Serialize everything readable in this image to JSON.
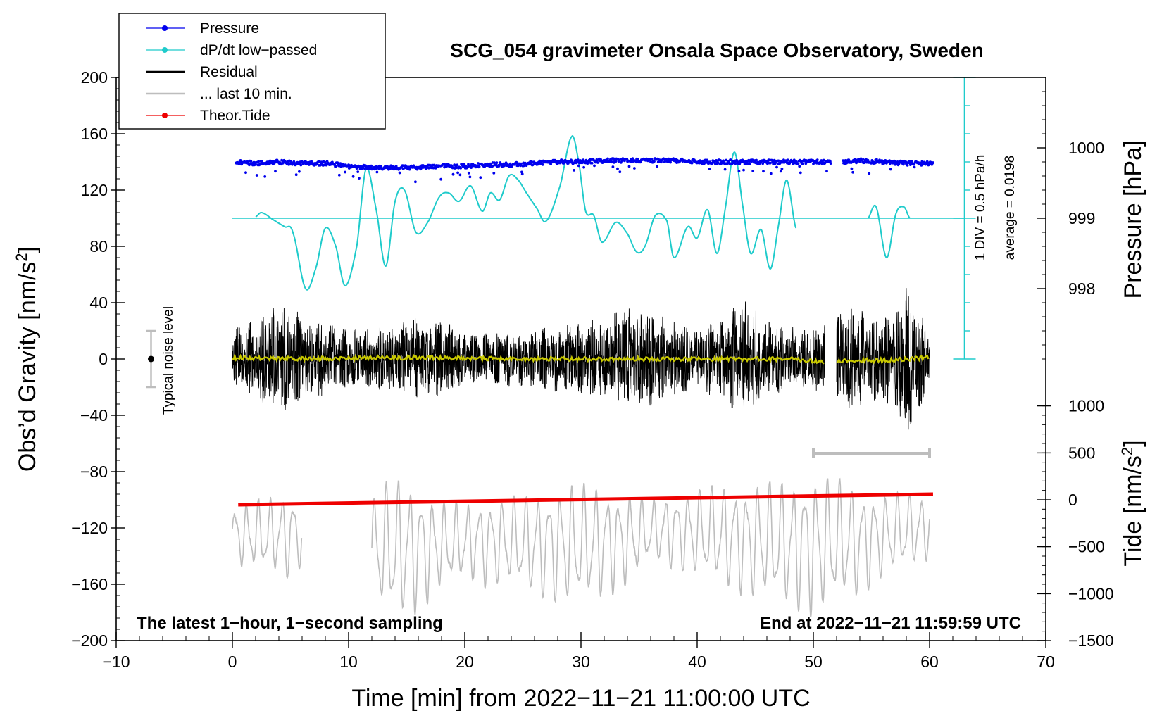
{
  "chart_data": {
    "type": "line",
    "title": "SCG_054 gravimeter Onsala Space Observatory, Sweden",
    "xlabel": "Time [min] from 2022−11−21 11:00:00 UTC",
    "xlim": [
      -10,
      70
    ],
    "xticks": [
      -10,
      0,
      10,
      20,
      30,
      40,
      50,
      60,
      70
    ],
    "xtick_labels": [
      "−10",
      "0",
      "10",
      "20",
      "30",
      "40",
      "50",
      "60",
      "70"
    ],
    "left_axis": {
      "label_main": "Obs’d Gravity [nm/s",
      "label_sup": "2",
      "label_end": "]",
      "ylim": [
        -200,
        200
      ],
      "ticks": [
        200,
        160,
        120,
        80,
        40,
        0,
        -40,
        -80,
        -120,
        -160,
        -200
      ],
      "tick_labels": [
        "200",
        "160",
        "120",
        "80",
        "40",
        "0",
        "−40",
        "−80",
        "−120",
        "−160",
        "−200"
      ]
    },
    "pressure_axis": {
      "label": "Pressure [hPa]",
      "ticks": [
        1000,
        999,
        998
      ],
      "tick_labels": [
        "1000",
        "999",
        "998"
      ],
      "gravity_equivalent": [
        150,
        100,
        50
      ]
    },
    "tide_axis": {
      "label_main": "Tide [nm/s",
      "label_sup": "2",
      "label_end": "]",
      "ticks": [
        1000,
        500,
        0,
        -500,
        -1000,
        -1500
      ],
      "tick_labels": [
        "1000",
        "500",
        "0",
        "−500",
        "−1000",
        "−1500"
      ],
      "gravity_equivalent": [
        -33.3,
        -66.7,
        -100,
        -133.3,
        -166.7,
        -200
      ]
    },
    "dpdt_scale": {
      "line1": "1 DIV = 0.5 hPa/h",
      "line2": "average = 0.0198",
      "zero_level": 100,
      "bar_range": [
        0,
        200
      ],
      "bar_x": 63
    },
    "noise_indicator": {
      "label": "Typical noise level",
      "x": -7,
      "center": 0,
      "range": [
        -20,
        20
      ]
    },
    "last10_bar": {
      "x_range": [
        50,
        60
      ],
      "level": -67
    },
    "legend": [
      {
        "label": "Pressure",
        "color": "#0000ee",
        "marker": true
      },
      {
        "label": "dP/dt low−passed",
        "color": "#1fcbcb",
        "marker": true
      },
      {
        "label": "Residual",
        "color": "#000000",
        "marker": false
      },
      {
        "label": "... last 10 min.",
        "color": "#bdbdbd",
        "marker": false
      },
      {
        "label": "Theor.Tide",
        "color": "#ee0000",
        "marker": true
      }
    ],
    "series": [
      {
        "name": "Pressure",
        "color": "#0000ee",
        "gap": [
          51.5,
          52.5
        ],
        "x": [
          0.3,
          2,
          4,
          6,
          8,
          10,
          12,
          14,
          16,
          18,
          20,
          22,
          24,
          26,
          28,
          30,
          32,
          34,
          36,
          38,
          40,
          42,
          44,
          46,
          48,
          50.3,
          52.6,
          54,
          56,
          58,
          60.3
        ],
        "values": [
          140,
          139,
          140,
          139,
          139,
          137,
          136,
          136,
          136,
          137,
          137,
          138,
          138,
          139,
          140,
          140,
          141,
          141,
          141,
          141,
          140,
          140,
          140,
          140,
          140,
          140,
          140,
          141,
          140,
          139,
          139
        ]
      },
      {
        "name": "dP/dt low−passed",
        "color": "#1fcbcb",
        "gap": [
          48.6,
          54.7
        ],
        "x": [
          2,
          2.5,
          3.5,
          4.5,
          5.2,
          6.3,
          7.2,
          8,
          8.9,
          9.7,
          10.7,
          11.5,
          12.4,
          13.2,
          14,
          14.8,
          15.8,
          16.8,
          17.8,
          18.6,
          19.5,
          20.5,
          21.5,
          22.2,
          23,
          23.8,
          24.5,
          25.3,
          26.2,
          27,
          28.2,
          29.2,
          29.8,
          30.4,
          31.1,
          31.8,
          33,
          34,
          34.8,
          35.5,
          36.4,
          37.4,
          38,
          39.2,
          40,
          40.9,
          41.7,
          42.4,
          43.2,
          43.9,
          44.6,
          45.5,
          46.3,
          47,
          47.7,
          48.5,
          54.7,
          55.4,
          56.3,
          57.1,
          57.8,
          58.3
        ],
        "values": [
          101,
          104,
          99,
          94,
          90,
          50,
          65,
          93,
          80,
          52,
          80,
          135,
          105,
          66,
          112,
          120,
          90,
          97,
          115,
          118,
          112,
          123,
          105,
          118,
          113,
          130,
          128,
          118,
          107,
          98,
          123,
          158,
          140,
          105,
          102,
          83,
          97,
          89,
          76,
          80,
          102,
          98,
          72,
          94,
          86,
          106,
          75,
          106,
          147,
          110,
          75,
          92,
          64,
          95,
          127,
          93,
          100,
          108,
          72,
          103,
          108,
          100
        ]
      },
      {
        "name": "Residual",
        "color": "#000000",
        "gap": [
          51,
          52
        ],
        "x": [
          0,
          2,
          4,
          6,
          8,
          10,
          12,
          14,
          16,
          18,
          20,
          22,
          24,
          26,
          28,
          30,
          32,
          34,
          36,
          38,
          40,
          42,
          44,
          46,
          48,
          50,
          53,
          55,
          57,
          58,
          59,
          60
        ],
        "envelope": [
          22,
          28,
          42,
          32,
          26,
          22,
          22,
          25,
          30,
          28,
          20,
          18,
          20,
          22,
          24,
          26,
          30,
          40,
          34,
          28,
          24,
          28,
          44,
          28,
          24,
          22,
          40,
          30,
          35,
          60,
          38,
          22
        ]
      },
      {
        "name": "Residual smoothed",
        "color": "#c8c800",
        "gap": [
          51,
          52
        ],
        "x": [
          0,
          6,
          12,
          18,
          24,
          30,
          36,
          42,
          48,
          51,
          52,
          56,
          60
        ],
        "values": [
          1,
          0,
          1,
          1,
          0,
          0,
          0,
          0,
          0,
          -2,
          -1,
          -1,
          1
        ]
      },
      {
        "name": "... last 10 min.",
        "color": "#bdbdbd",
        "gap": [
          6,
          12
        ],
        "x": [
          0,
          2,
          4,
          5,
          6,
          12,
          14,
          16,
          18,
          20,
          22,
          24,
          26,
          28,
          30,
          32,
          34,
          36,
          38,
          40,
          42,
          44,
          46,
          48,
          50,
          52,
          54,
          56,
          58,
          60
        ],
        "envelope": [
          22,
          26,
          28,
          32,
          22,
          40,
          52,
          46,
          32,
          28,
          32,
          32,
          38,
          42,
          44,
          40,
          34,
          22,
          28,
          32,
          36,
          40,
          44,
          46,
          54,
          46,
          40,
          30,
          28,
          22
        ],
        "centers": [
          -125,
          -125,
          -125,
          -125,
          -125,
          -135,
          -135,
          -135,
          -132,
          -130,
          -130,
          -130,
          -132,
          -132,
          -132,
          -130,
          -128,
          -122,
          -122,
          -124,
          -125,
          -128,
          -130,
          -132,
          -132,
          -130,
          -130,
          -125,
          -122,
          -120
        ]
      },
      {
        "name": "Theor.Tide",
        "color": "#ee0000",
        "x": [
          0.5,
          60.3
        ],
        "values": [
          -103.5,
          -96
        ]
      }
    ],
    "annotations": [
      "The latest 1−hour, 1−second sampling",
      "End at 2022−11−21 11:59:59 UTC"
    ]
  }
}
